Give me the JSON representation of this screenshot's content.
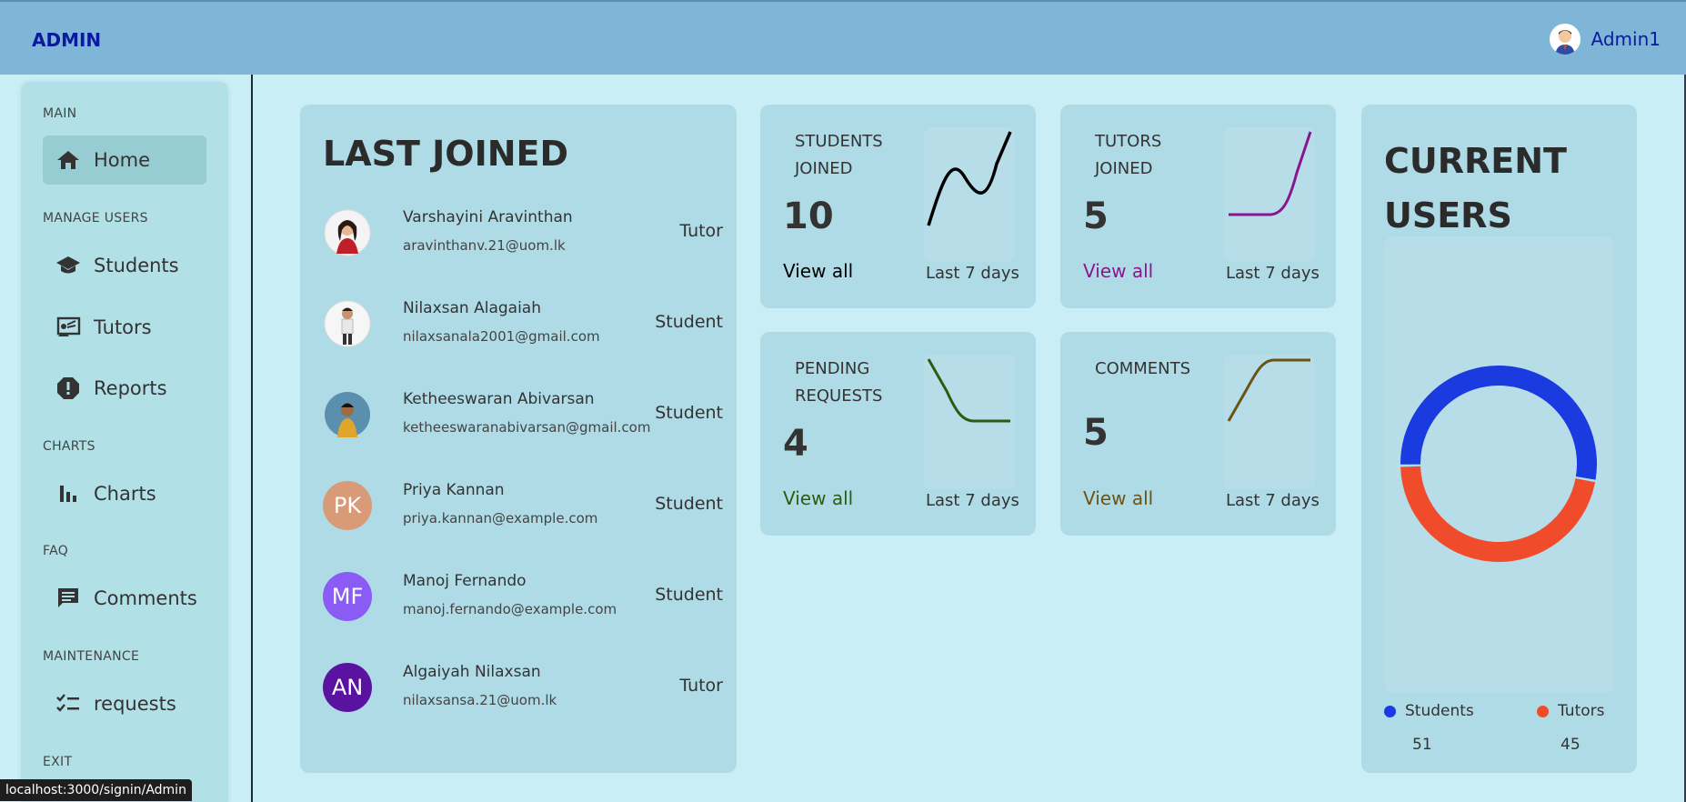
{
  "header": {
    "brand": "ADMIN",
    "user_name": "Admin1"
  },
  "sidebar": {
    "sections": [
      {
        "title": "MAIN",
        "items": [
          {
            "label": "Home",
            "icon": "home-icon",
            "active": true
          }
        ]
      },
      {
        "title": "MANAGE USERS",
        "items": [
          {
            "label": "Students",
            "icon": "graduation-cap-icon"
          },
          {
            "label": "Tutors",
            "icon": "teacher-screen-icon"
          },
          {
            "label": "Reports",
            "icon": "report-alert-icon"
          }
        ]
      },
      {
        "title": "CHARTS",
        "items": [
          {
            "label": "Charts",
            "icon": "bar-chart-icon"
          }
        ]
      },
      {
        "title": "FAQ",
        "items": [
          {
            "label": "Comments",
            "icon": "comment-icon"
          }
        ]
      },
      {
        "title": "MAINTENANCE",
        "items": [
          {
            "label": "requests",
            "icon": "checklist-icon"
          }
        ]
      },
      {
        "title": "EXIT",
        "items": []
      }
    ]
  },
  "last_joined": {
    "title": "LAST JOINED",
    "people": [
      {
        "name": "Varshayini Aravinthan",
        "email": "aravinthanv.21@uom.lk",
        "role": "Tutor",
        "initials": "",
        "photo": true
      },
      {
        "name": "Nilaxsan Alagaiah",
        "email": "nilaxsanala2001@gmail.com",
        "role": "Student",
        "initials": "",
        "photo": true
      },
      {
        "name": "Ketheeswaran Abivarsan",
        "email": "ketheeswaranabivarsan@gmail.com",
        "role": "Student",
        "initials": "",
        "photo": true
      },
      {
        "name": "Priya Kannan",
        "email": "priya.kannan@example.com",
        "role": "Student",
        "initials": "PK",
        "color": "#d99a78"
      },
      {
        "name": "Manoj Fernando",
        "email": "manoj.fernando@example.com",
        "role": "Student",
        "initials": "MF",
        "color": "#8a5cf5"
      },
      {
        "name": "Algaiyah Nilaxsan",
        "email": "nilaxsansa.21@uom.lk",
        "role": "Tutor",
        "initials": "AN",
        "color": "#5a12a0"
      }
    ]
  },
  "stats": [
    {
      "label": "STUDENTS JOINED",
      "value": "10",
      "link": "View all",
      "link_color": "#000000",
      "sub": "Last 7 days",
      "line_color": "#000000"
    },
    {
      "label": "TUTORS JOINED",
      "value": "5",
      "link": "View all",
      "link_color": "#8a168f",
      "sub": "Last 7 days",
      "line_color": "#8a168f"
    },
    {
      "label": "PENDING REQUESTS",
      "value": "4",
      "link": "View all",
      "link_color": "#2e5a12",
      "sub": "Last 7 days",
      "line_color": "#2e5a12"
    },
    {
      "label": "COMMENTS",
      "value": "5",
      "link": "View all",
      "link_color": "#6b5314",
      "sub": "Last 7 days",
      "line_color": "#6b5314"
    }
  ],
  "current_users": {
    "title": "CURRENT USERS",
    "chart_data": {
      "type": "pie",
      "categories": [
        "Students",
        "Tutors"
      ],
      "values": [
        51,
        45
      ],
      "colors": [
        "#1a3be0",
        "#f04c2c"
      ]
    },
    "legend": [
      {
        "label": "Students",
        "value": "51",
        "color": "#1a3be0"
      },
      {
        "label": "Tutors",
        "value": "45",
        "color": "#f04c2c"
      }
    ]
  },
  "status_bar": {
    "url": "localhost:3000/signin/Admin"
  }
}
